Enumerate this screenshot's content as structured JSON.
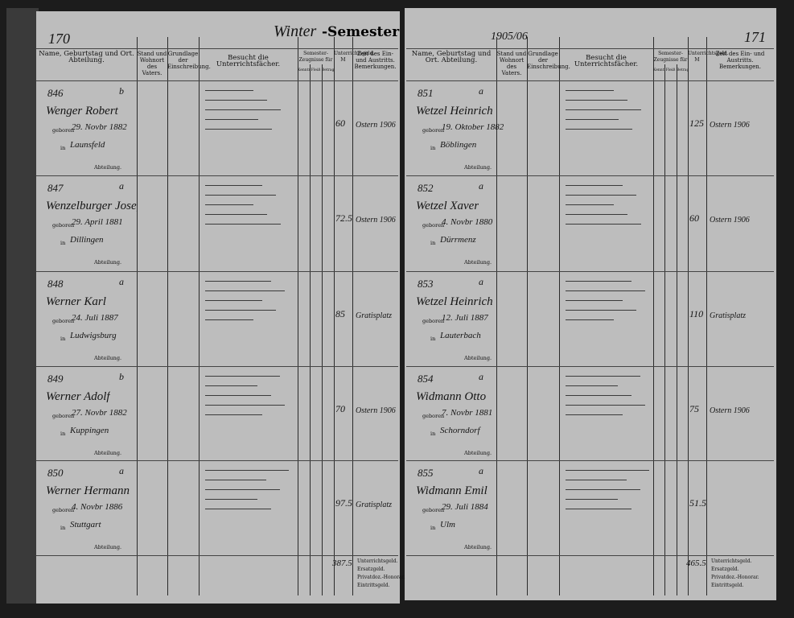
{
  "header": {
    "left_page_number": "170",
    "right_page_number": "171",
    "semester_hand": "Winter",
    "semester": "-Semester",
    "year": "1905/06"
  },
  "columns": {
    "name": "Name, Geburtstag und Ort. Abteilung.",
    "stand": "Stand und Wohnort des Vaters.",
    "grundlage": "Grundlage der Einschreibung.",
    "besucht": "Besucht die Unterrichtsfächer.",
    "zeugnisse": "Semester-Zeugnisse für",
    "kenntnisse": "Kenntnisse",
    "fleiss": "Fleiß",
    "betragen": "Betragen",
    "geld": "Unterrichtsgeld. M",
    "bemerkungen": "Zeit des Ein- und Austritts. Bemerkungen."
  },
  "labels": {
    "geboren": "geboren",
    "in": "in",
    "abteilung": "Abteilung."
  },
  "left_rows": [
    {
      "number": "846",
      "division": "b",
      "name": "Wenger Robert",
      "born": "29. Novbr 1882",
      "place": "Launsfeld",
      "fee": "60",
      "remark": "Ostern 1906"
    },
    {
      "number": "847",
      "division": "a",
      "name": "Wenzelburger Josef",
      "born": "29. April 1881",
      "place": "Dillingen",
      "fee": "72.5",
      "remark": "Ostern 1906"
    },
    {
      "number": "848",
      "division": "a",
      "name": "Werner Karl",
      "born": "24. Juli 1887",
      "place": "Ludwigsburg",
      "fee": "85",
      "remark": "Gratisplatz"
    },
    {
      "number": "849",
      "division": "b",
      "name": "Werner Adolf",
      "born": "27. Novbr 1882",
      "place": "Kuppingen",
      "fee": "70",
      "remark": "Ostern 1906"
    },
    {
      "number": "850",
      "division": "a",
      "name": "Werner Hermann",
      "born": "4. Novbr 1886",
      "place": "Stuttgart",
      "fee": "97.5",
      "remark": "Gratisplatz"
    }
  ],
  "right_rows": [
    {
      "number": "851",
      "division": "a",
      "name": "Wetzel Heinrich",
      "born": "19. Oktober 1882",
      "place": "Böblingen",
      "fee": "125",
      "remark": "Ostern 1906"
    },
    {
      "number": "852",
      "division": "a",
      "name": "Wetzel Xaver",
      "born": "4. Novbr 1880",
      "place": "Dürrmenz",
      "fee": "60",
      "remark": "Ostern 1906"
    },
    {
      "number": "853",
      "division": "a",
      "name": "Wetzel Heinrich",
      "born": "12. Juli 1887",
      "place": "Lauterbach",
      "fee": "110",
      "remark": "Gratisplatz"
    },
    {
      "number": "854",
      "division": "a",
      "name": "Widmann Otto",
      "born": "7. Novbr 1881",
      "place": "Schorndorf",
      "fee": "75",
      "remark": "Ostern 1906"
    },
    {
      "number": "855",
      "division": "a",
      "name": "Widmann Emil",
      "born": "29. Juli 1884",
      "place": "Ulm",
      "fee": "51.5"
    }
  ],
  "footer": {
    "labels": [
      "Unterrichtsgeld.",
      "Ersatzgeld.",
      "Privatdoz.-Honorar.",
      "Eintrittsgeld."
    ],
    "left_total": "387.5",
    "right_total": "465.5"
  }
}
